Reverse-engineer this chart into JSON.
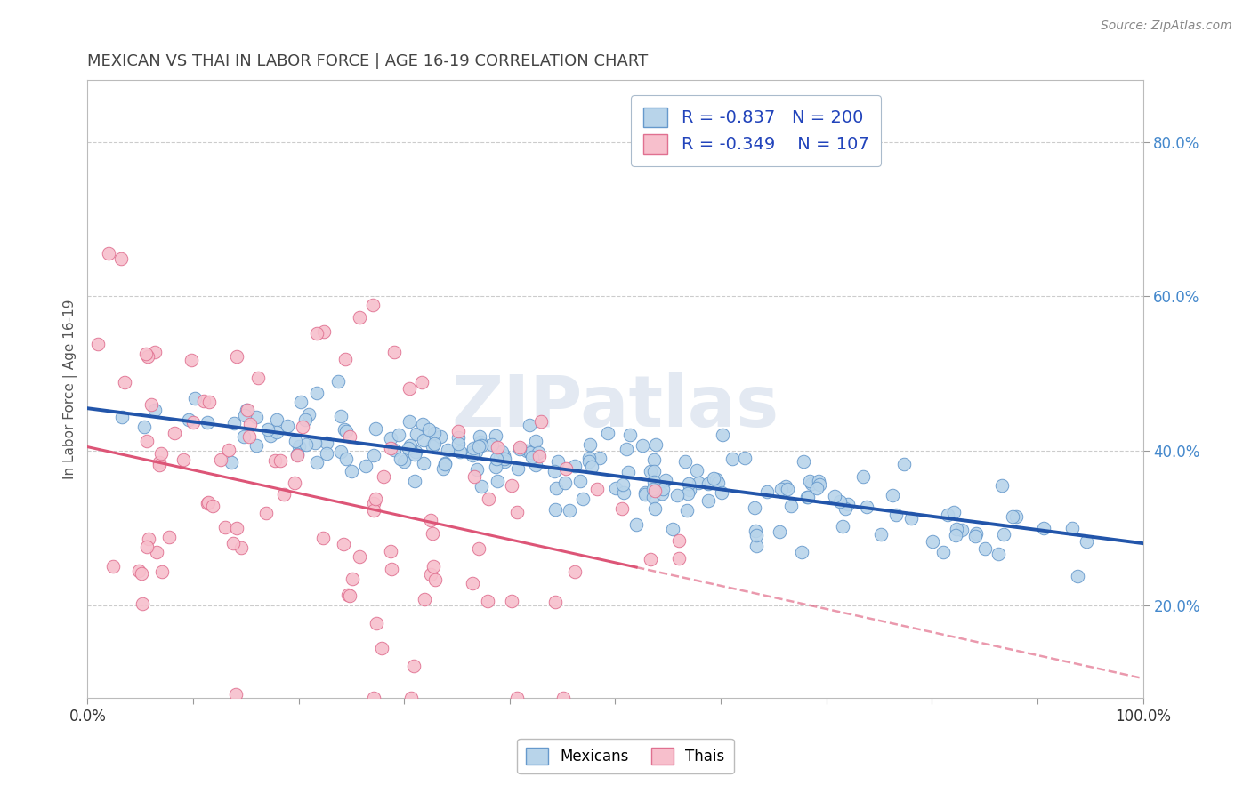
{
  "title": "MEXICAN VS THAI IN LABOR FORCE | AGE 16-19 CORRELATION CHART",
  "source_text": "Source: ZipAtlas.com",
  "ylabel": "In Labor Force | Age 16-19",
  "watermark": "ZIPatlas",
  "xlim": [
    0.0,
    1.0
  ],
  "ylim": [
    0.08,
    0.88
  ],
  "xticks": [
    0.0,
    0.1,
    0.2,
    0.3,
    0.4,
    0.5,
    0.6,
    0.7,
    0.8,
    0.9,
    1.0
  ],
  "yticks": [
    0.2,
    0.4,
    0.6,
    0.8
  ],
  "mexican_color": "#b8d4ea",
  "thai_color": "#f7bfcc",
  "mexican_edge_color": "#6699cc",
  "thai_edge_color": "#e07090",
  "mexican_line_color": "#2255aa",
  "thai_line_color": "#dd5577",
  "background_color": "#ffffff",
  "grid_color": "#cccccc",
  "legend_color": "#2244bb",
  "title_color": "#444444",
  "watermark_color": "#ccd8e8",
  "mexican_R": -0.837,
  "mexican_N": 200,
  "thai_R": -0.349,
  "thai_N": 107,
  "mexican_intercept": 0.455,
  "mexican_slope": -0.175,
  "thai_intercept": 0.405,
  "thai_slope": -0.3,
  "thai_line_x_max": 0.52
}
